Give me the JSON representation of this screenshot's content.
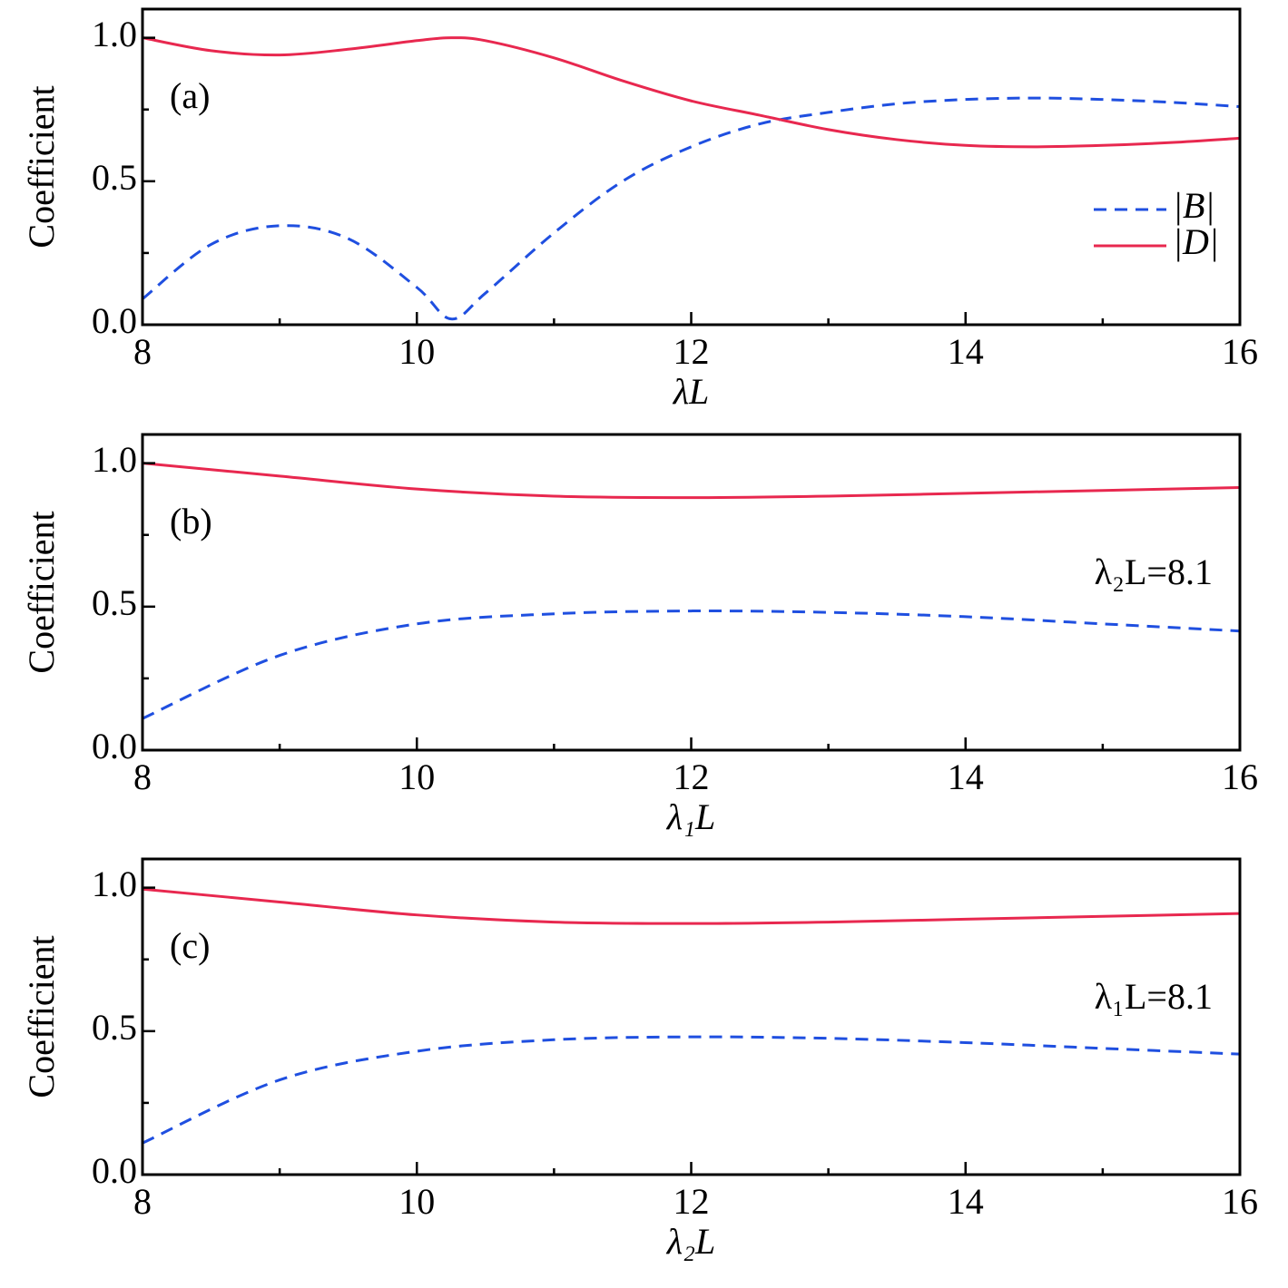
{
  "chart_data": [
    {
      "type": "line",
      "panel_label": "(a)",
      "xlabel": "λL",
      "ylabel": "Coefficient",
      "xlim": [
        8,
        16
      ],
      "xticks": [
        8,
        10,
        12,
        14,
        16
      ],
      "xticks_minor": [
        9,
        11,
        13,
        15
      ],
      "ylim": [
        0,
        1.1
      ],
      "yticks": [
        {
          "value": 0,
          "label": "0.0"
        },
        {
          "value": 0.5,
          "label": "0.5"
        },
        {
          "value": 1,
          "label": "1.0"
        }
      ],
      "yticks_minor": [
        0.25,
        0.75
      ],
      "legend": "center right",
      "x": [
        8,
        8.5,
        9,
        9.5,
        10,
        10.25,
        10.5,
        11,
        11.5,
        12,
        12.5,
        13,
        13.5,
        14,
        14.5,
        15,
        15.5,
        16
      ],
      "series": [
        {
          "name": "|B|",
          "color": "#1f4fe0",
          "dash": "dashed",
          "values": [
            0.09,
            0.28,
            0.345,
            0.3,
            0.13,
            0.02,
            0.11,
            0.32,
            0.5,
            0.62,
            0.7,
            0.74,
            0.77,
            0.785,
            0.79,
            0.785,
            0.775,
            0.76
          ]
        },
        {
          "name": "|D|",
          "color": "#e8284f",
          "dash": "solid",
          "values": [
            1.0,
            0.955,
            0.94,
            0.96,
            0.99,
            1.0,
            0.99,
            0.93,
            0.85,
            0.78,
            0.73,
            0.68,
            0.645,
            0.625,
            0.62,
            0.625,
            0.635,
            0.65
          ]
        }
      ]
    },
    {
      "type": "line",
      "panel_label": "(b)",
      "xlabel": "λ₁L",
      "ylabel": "Coefficient",
      "annotation": "λ₂L=8.1",
      "xlim": [
        8,
        16
      ],
      "xticks": [
        8,
        10,
        12,
        14,
        16
      ],
      "xticks_minor": [
        9,
        11,
        13,
        15
      ],
      "ylim": [
        0,
        1.1
      ],
      "yticks": [
        {
          "value": 0,
          "label": "0.0"
        },
        {
          "value": 0.5,
          "label": "0.5"
        },
        {
          "value": 1,
          "label": "1.0"
        }
      ],
      "yticks_minor": [
        0.25,
        0.75
      ],
      "x": [
        8,
        9,
        10,
        11,
        12,
        13,
        14,
        15,
        16
      ],
      "series": [
        {
          "name": "|B|",
          "color": "#1f4fe0",
          "dash": "dashed",
          "values": [
            0.11,
            0.33,
            0.44,
            0.475,
            0.485,
            0.48,
            0.465,
            0.44,
            0.415
          ]
        },
        {
          "name": "|D|",
          "color": "#e8284f",
          "dash": "solid",
          "values": [
            1.0,
            0.955,
            0.91,
            0.885,
            0.88,
            0.885,
            0.895,
            0.905,
            0.915
          ]
        }
      ]
    },
    {
      "type": "line",
      "panel_label": "(c)",
      "xlabel": "λ₂L",
      "ylabel": "Coefficient",
      "annotation": "λ₁L=8.1",
      "xlim": [
        8,
        16
      ],
      "xticks": [
        8,
        10,
        12,
        14,
        16
      ],
      "xticks_minor": [
        9,
        11,
        13,
        15
      ],
      "ylim": [
        0,
        1.1
      ],
      "yticks": [
        {
          "value": 0,
          "label": "0.0"
        },
        {
          "value": 0.5,
          "label": "0.5"
        },
        {
          "value": 1,
          "label": "1.0"
        }
      ],
      "yticks_minor": [
        0.25,
        0.75
      ],
      "x": [
        8,
        9,
        10,
        11,
        12,
        13,
        14,
        15,
        16
      ],
      "series": [
        {
          "name": "|B|",
          "color": "#1f4fe0",
          "dash": "dashed",
          "values": [
            0.11,
            0.33,
            0.43,
            0.47,
            0.48,
            0.475,
            0.46,
            0.44,
            0.42
          ]
        },
        {
          "name": "|D|",
          "color": "#e8284f",
          "dash": "solid",
          "values": [
            0.995,
            0.95,
            0.905,
            0.88,
            0.875,
            0.88,
            0.89,
            0.9,
            0.91
          ]
        }
      ]
    }
  ]
}
